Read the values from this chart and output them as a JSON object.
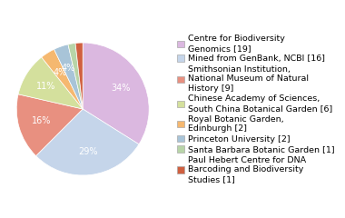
{
  "labels": [
    "Centre for Biodiversity\nGenomics [19]",
    "Mined from GenBank, NCBI [16]",
    "Smithsonian Institution,\nNational Museum of Natural\nHistory [9]",
    "Chinese Academy of Sciences,\nSouth China Botanical Garden [6]",
    "Royal Botanic Garden,\nEdinburgh [2]",
    "Princeton University [2]",
    "Santa Barbara Botanic Garden [1]",
    "Paul Hebert Centre for DNA\nBarcoding and Biodiversity\nStudies [1]"
  ],
  "values": [
    19,
    16,
    9,
    6,
    2,
    2,
    1,
    1
  ],
  "colors": [
    "#dbb8e0",
    "#c5d5ea",
    "#e89080",
    "#d4e09d",
    "#f5b870",
    "#a8c4d8",
    "#b8d4a8",
    "#d06040"
  ],
  "font_size": 7,
  "legend_font_size": 6.8,
  "figsize": [
    3.8,
    2.4
  ],
  "dpi": 100
}
